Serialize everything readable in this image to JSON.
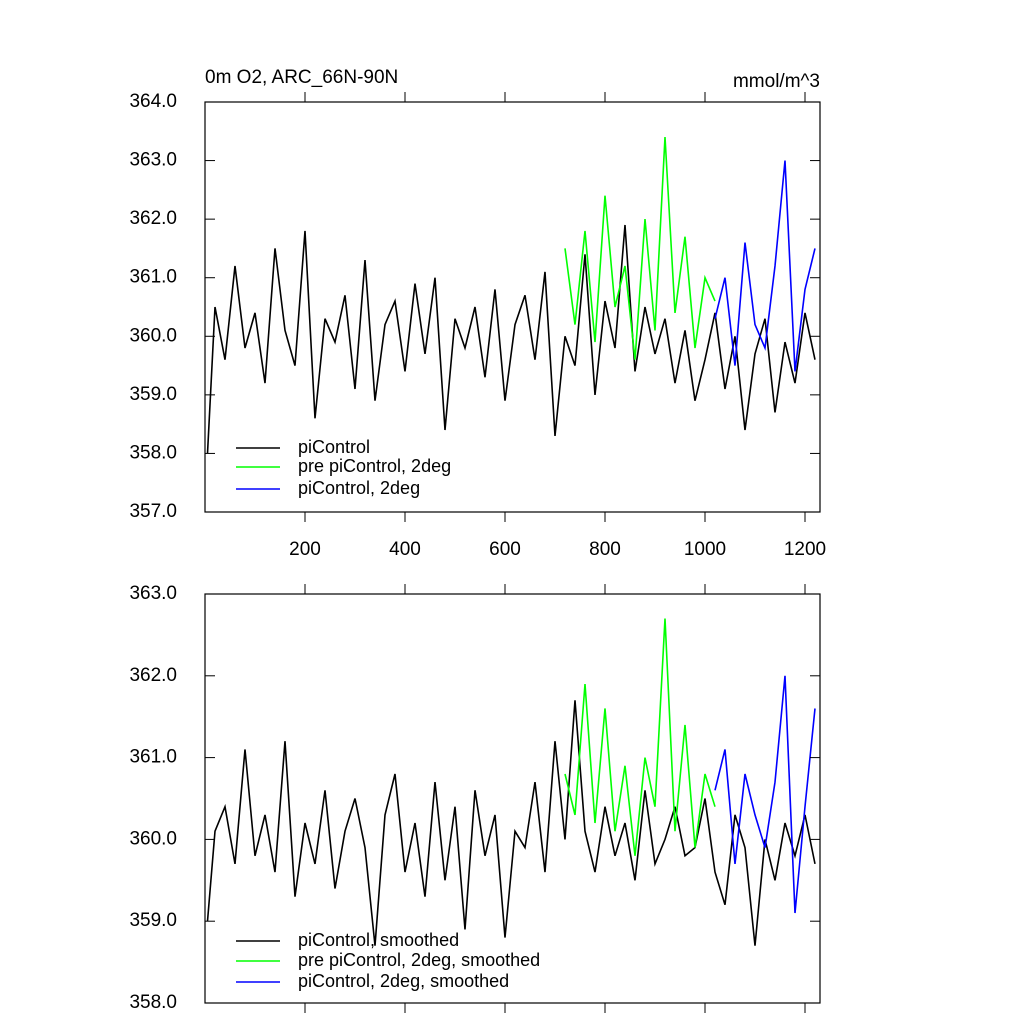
{
  "chart_data": [
    {
      "type": "line",
      "title": "0m O2, ARC_66N-90N",
      "units": "mmol/m^3",
      "xlim": [
        0,
        1230
      ],
      "xticks": [
        200,
        400,
        600,
        800,
        1000,
        1200
      ],
      "ylim": [
        357,
        364
      ],
      "yticks": [
        {
          "value": 357,
          "label": "357.0"
        },
        {
          "value": 358,
          "label": "358.0"
        },
        {
          "value": 359,
          "label": "359.0"
        },
        {
          "value": 360,
          "label": "360.0"
        },
        {
          "value": 361,
          "label": "361.0"
        },
        {
          "value": 362,
          "label": "362.0"
        },
        {
          "value": 363,
          "label": "363.0"
        },
        {
          "value": 364,
          "label": "364.0"
        }
      ],
      "legend": "lower left",
      "series": [
        {
          "name": "piControl",
          "color": "#000000",
          "x": [
            5,
            20,
            40,
            60,
            80,
            100,
            120,
            140,
            160,
            180,
            200,
            220,
            240,
            260,
            280,
            300,
            320,
            340,
            360,
            380,
            400,
            420,
            440,
            460,
            480,
            500,
            520,
            540,
            560,
            580,
            600,
            620,
            640,
            660,
            680,
            700,
            720,
            740,
            760,
            780,
            800,
            820,
            840,
            860,
            880,
            900,
            920,
            940,
            960,
            980,
            1000,
            1020,
            1040,
            1060,
            1080,
            1100,
            1120,
            1140,
            1160,
            1180,
            1200,
            1220
          ],
          "values": [
            358.0,
            360.5,
            359.6,
            361.2,
            359.8,
            360.4,
            359.2,
            361.5,
            360.1,
            359.5,
            361.8,
            358.6,
            360.3,
            359.9,
            360.7,
            359.1,
            361.3,
            358.9,
            360.2,
            360.6,
            359.4,
            360.9,
            359.7,
            361.0,
            358.4,
            360.3,
            359.8,
            360.5,
            359.3,
            360.8,
            358.9,
            360.2,
            360.7,
            359.6,
            361.1,
            358.3,
            360.0,
            359.5,
            361.4,
            359.0,
            360.6,
            359.8,
            361.9,
            359.4,
            360.5,
            359.7,
            360.3,
            359.2,
            360.1,
            358.9,
            359.6,
            360.4,
            359.1,
            360.0,
            358.4,
            359.7,
            360.3,
            358.7,
            359.9,
            359.2,
            360.4,
            359.6
          ]
        },
        {
          "name": "pre piControl, 2deg",
          "color": "#00ff00",
          "x": [
            720,
            740,
            760,
            780,
            800,
            820,
            840,
            860,
            880,
            900,
            920,
            940,
            960,
            980,
            1000,
            1020
          ],
          "values": [
            361.5,
            360.2,
            361.8,
            359.9,
            362.4,
            360.5,
            361.2,
            359.6,
            362.0,
            360.1,
            363.4,
            360.4,
            361.7,
            359.8,
            361.0,
            360.6
          ]
        },
        {
          "name": "piControl, 2deg",
          "color": "#0000ff",
          "x": [
            1020,
            1040,
            1060,
            1080,
            1100,
            1120,
            1140,
            1160,
            1180,
            1200,
            1220
          ],
          "values": [
            360.3,
            361.0,
            359.5,
            361.6,
            360.2,
            359.8,
            361.2,
            363.0,
            359.4,
            360.8,
            361.5
          ]
        }
      ]
    },
    {
      "type": "line",
      "xlim": [
        0,
        1230
      ],
      "xticks": [
        200,
        400,
        600,
        800,
        1000,
        1200
      ],
      "ylim": [
        358,
        363
      ],
      "yticks": [
        {
          "value": 358,
          "label": "358.0"
        },
        {
          "value": 359,
          "label": "359.0"
        },
        {
          "value": 360,
          "label": "360.0"
        },
        {
          "value": 361,
          "label": "361.0"
        },
        {
          "value": 362,
          "label": "362.0"
        },
        {
          "value": 363,
          "label": "363.0"
        }
      ],
      "legend": "lower left",
      "series": [
        {
          "name": "piControl, smoothed",
          "color": "#000000",
          "x": [
            5,
            20,
            40,
            60,
            80,
            100,
            120,
            140,
            160,
            180,
            200,
            220,
            240,
            260,
            280,
            300,
            320,
            340,
            360,
            380,
            400,
            420,
            440,
            460,
            480,
            500,
            520,
            540,
            560,
            580,
            600,
            620,
            640,
            660,
            680,
            700,
            720,
            740,
            760,
            780,
            800,
            820,
            840,
            860,
            880,
            900,
            920,
            940,
            960,
            980,
            1000,
            1020,
            1040,
            1060,
            1080,
            1100,
            1120,
            1140,
            1160,
            1180,
            1200,
            1220
          ],
          "values": [
            359.0,
            360.1,
            360.4,
            359.7,
            361.1,
            359.8,
            360.3,
            359.6,
            361.2,
            359.3,
            360.2,
            359.7,
            360.6,
            359.4,
            360.1,
            360.5,
            359.9,
            358.7,
            360.3,
            360.8,
            359.6,
            360.2,
            359.3,
            360.7,
            359.5,
            360.4,
            358.9,
            360.6,
            359.8,
            360.3,
            358.8,
            360.1,
            359.9,
            360.7,
            359.6,
            361.2,
            360.0,
            361.7,
            360.1,
            359.6,
            360.4,
            359.8,
            360.2,
            359.5,
            360.6,
            359.7,
            360.0,
            360.4,
            359.8,
            359.9,
            360.5,
            359.6,
            359.2,
            360.3,
            359.9,
            358.7,
            360.0,
            359.5,
            360.2,
            359.8,
            360.3,
            359.7
          ]
        },
        {
          "name": "pre piControl, 2deg, smoothed",
          "color": "#00ff00",
          "x": [
            720,
            740,
            760,
            780,
            800,
            820,
            840,
            860,
            880,
            900,
            920,
            940,
            960,
            980,
            1000,
            1020
          ],
          "values": [
            360.8,
            360.3,
            361.9,
            360.2,
            361.6,
            360.1,
            360.9,
            359.8,
            361.0,
            360.4,
            362.7,
            360.1,
            361.4,
            359.9,
            360.8,
            360.4
          ]
        },
        {
          "name": "piControl, 2deg, smoothed",
          "color": "#0000ff",
          "x": [
            1020,
            1040,
            1060,
            1080,
            1100,
            1120,
            1140,
            1160,
            1180,
            1200,
            1220
          ],
          "values": [
            360.6,
            361.1,
            359.7,
            360.8,
            360.3,
            359.9,
            360.7,
            362.0,
            359.1,
            360.4,
            361.6
          ]
        }
      ]
    }
  ]
}
